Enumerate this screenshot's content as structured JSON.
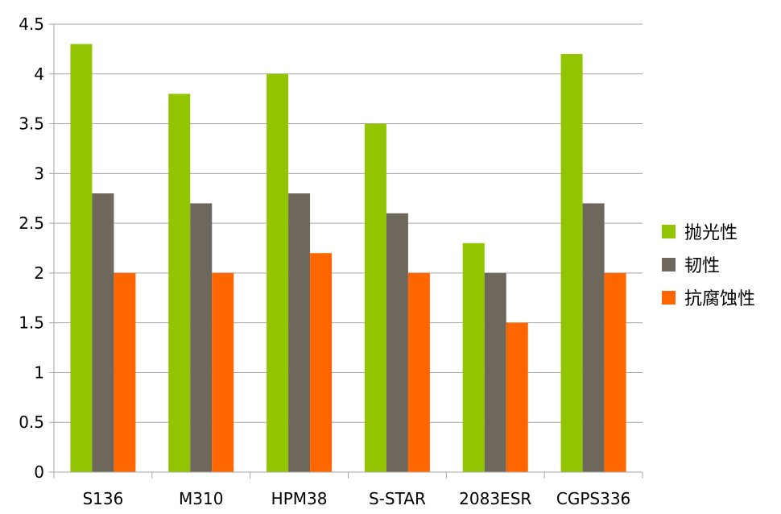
{
  "chart_data": {
    "type": "bar",
    "title": "",
    "xlabel": "",
    "ylabel": "",
    "categories": [
      "S136",
      "M310",
      "HPM38",
      "S-STAR",
      "2083ESR",
      "CGPS336"
    ],
    "series": [
      {
        "name": "抛光性",
        "color": "#92C400",
        "values": [
          4.3,
          3.8,
          4.0,
          3.5,
          2.3,
          4.2
        ]
      },
      {
        "name": "韧性",
        "color": "#6E675B",
        "values": [
          2.8,
          2.7,
          2.8,
          2.6,
          2.0,
          2.7
        ]
      },
      {
        "name": "抗腐蚀性",
        "color": "#FF6600",
        "values": [
          2.0,
          2.0,
          2.2,
          2.0,
          1.5,
          2.0
        ]
      }
    ],
    "ylim": [
      0,
      4.5
    ],
    "yticks": [
      "0",
      "0.5",
      "1",
      "1.5",
      "2",
      "2.5",
      "3",
      "3.5",
      "4",
      "4.5"
    ],
    "grid": true,
    "legend_position": "right"
  }
}
